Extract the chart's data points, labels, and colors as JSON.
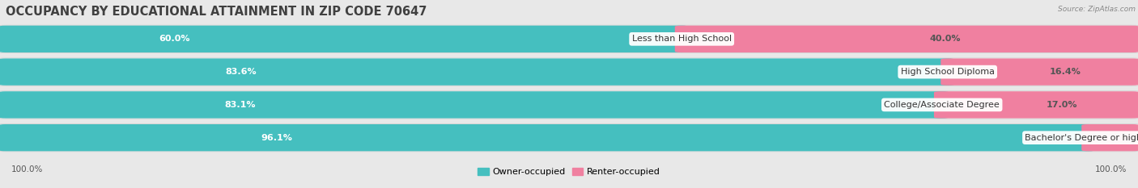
{
  "title": "OCCUPANCY BY EDUCATIONAL ATTAINMENT IN ZIP CODE 70647",
  "source": "Source: ZipAtlas.com",
  "categories": [
    "Less than High School",
    "High School Diploma",
    "College/Associate Degree",
    "Bachelor's Degree or higher"
  ],
  "owner_pct": [
    60.0,
    83.6,
    83.1,
    96.1
  ],
  "renter_pct": [
    40.0,
    16.4,
    17.0,
    3.9
  ],
  "owner_color": "#45bfbf",
  "renter_color": "#f080a0",
  "bg_color": "#e8e8e8",
  "bar_bg_color": "#f5f5f5",
  "title_fontsize": 10.5,
  "label_fontsize": 8.0,
  "pct_fontsize": 8.0,
  "axis_label_fontsize": 7.5,
  "legend_fontsize": 8.0,
  "left_label": "100.0%",
  "right_label": "100.0%"
}
